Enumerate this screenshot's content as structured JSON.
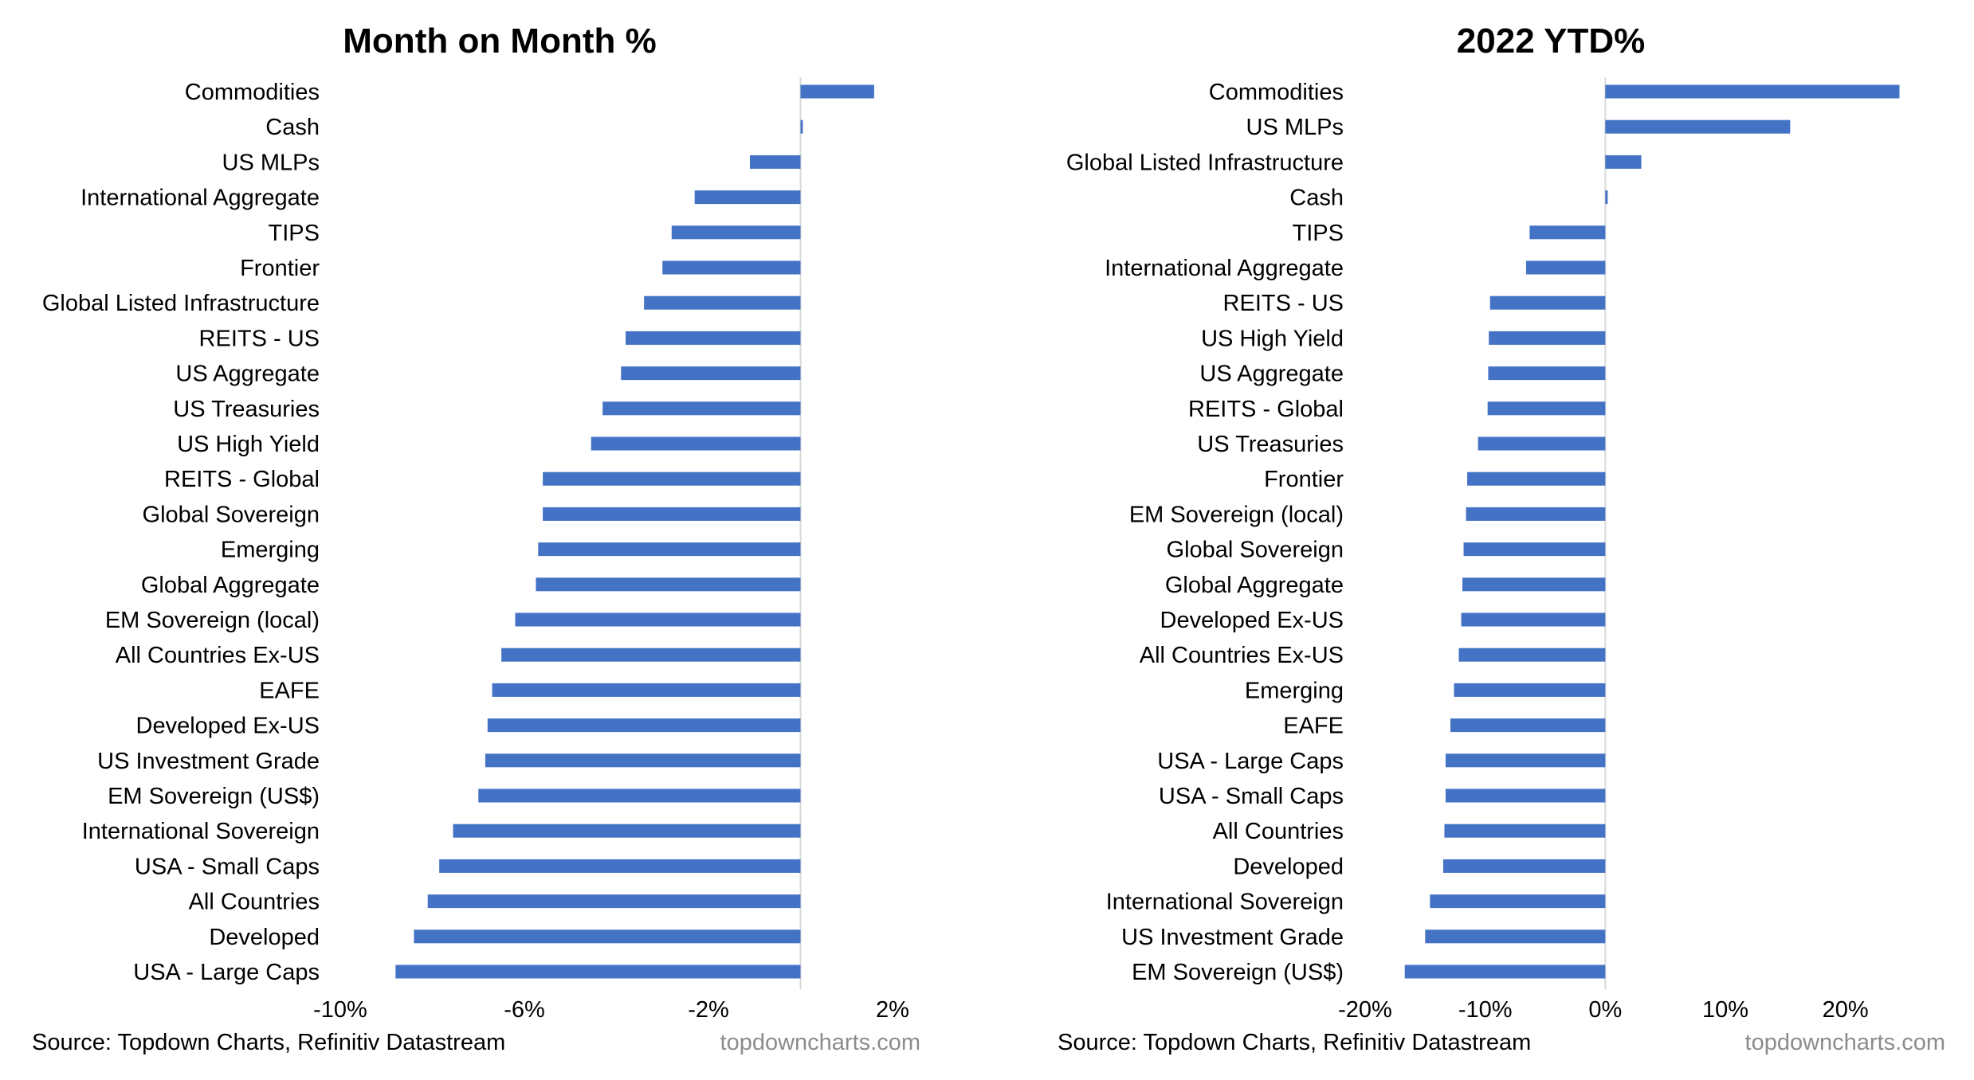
{
  "chart_data": [
    {
      "type": "bar",
      "orientation": "horizontal",
      "title": "Month on Month %",
      "xlabel": "",
      "ylabel": "",
      "xlim": [
        -10,
        2
      ],
      "xticks": [
        -10,
        -6,
        -2,
        2
      ],
      "xtick_labels": [
        "-10%",
        "-6%",
        "-2%",
        "2%"
      ],
      "grid": false,
      "bar_color": "#4472C4",
      "categories": [
        "Commodities",
        "Cash",
        "US MLPs",
        "International Aggregate",
        "TIPS",
        "Frontier",
        "Global Listed Infrastructure",
        "REITS - US",
        "US Aggregate",
        "US Treasuries",
        "US High Yield",
        "REITS - Global",
        "Global Sovereign",
        "Emerging",
        "Global Aggregate",
        "EM Sovereign (local)",
        "All Countries Ex-US",
        "EAFE",
        "Developed Ex-US",
        "US Investment Grade",
        "EM Sovereign (US$)",
        "International Sovereign",
        "USA - Small Caps",
        "All Countries",
        "Developed",
        "USA - Large Caps"
      ],
      "values": [
        1.6,
        0.05,
        -1.1,
        -2.3,
        -2.8,
        -3.0,
        -3.4,
        -3.8,
        -3.9,
        -4.3,
        -4.55,
        -5.6,
        -5.6,
        -5.7,
        -5.75,
        -6.2,
        -6.5,
        -6.7,
        -6.8,
        -6.85,
        -7.0,
        -7.55,
        -7.85,
        -8.1,
        -8.4,
        -8.8
      ],
      "source": "Source: Topdown Charts, Refinitiv Datastream",
      "watermark": "topdowncharts.com"
    },
    {
      "type": "bar",
      "orientation": "horizontal",
      "title": "2022 YTD%",
      "xlabel": "",
      "ylabel": "",
      "xlim": [
        -20,
        25
      ],
      "xticks": [
        -20,
        -10,
        0,
        10,
        20
      ],
      "xtick_labels": [
        "-20%",
        "-10%",
        "0%",
        "10%",
        "20%"
      ],
      "grid": false,
      "bar_color": "#4472C4",
      "categories": [
        "Commodities",
        "US MLPs",
        "Global Listed Infrastructure",
        "Cash",
        "TIPS",
        "International Aggregate",
        "REITS - US",
        "US High Yield",
        "US Aggregate",
        "REITS - Global",
        "US Treasuries",
        "Frontier",
        "EM Sovereign (local)",
        "Global Sovereign",
        "Global Aggregate",
        "Developed Ex-US",
        "All Countries Ex-US",
        "Emerging",
        "EAFE",
        "USA - Large Caps",
        "USA - Small Caps",
        "All Countries",
        "Developed",
        "International Sovereign",
        "US Investment Grade",
        "EM Sovereign (US$)"
      ],
      "values": [
        24.5,
        15.4,
        3.0,
        0.2,
        -6.3,
        -6.6,
        -9.6,
        -9.7,
        -9.75,
        -9.8,
        -10.6,
        -11.5,
        -11.6,
        -11.8,
        -11.9,
        -12.0,
        -12.2,
        -12.6,
        -12.9,
        -13.3,
        -13.3,
        -13.4,
        -13.5,
        -14.6,
        -15.0,
        -16.7
      ],
      "source": "Source: Topdown Charts, Refinitiv Datastream",
      "watermark": "topdowncharts.com"
    }
  ]
}
